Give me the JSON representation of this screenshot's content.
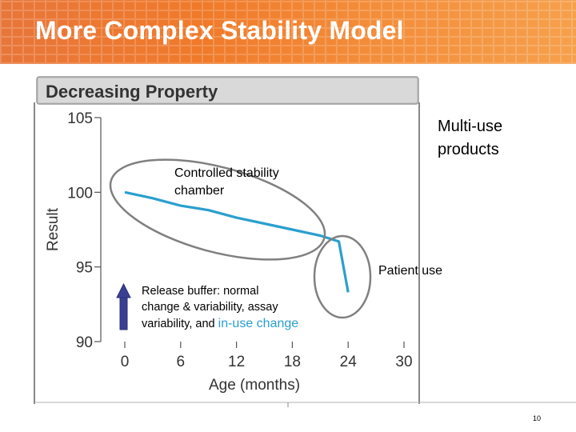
{
  "slide": {
    "title": "More Complex Stability Model",
    "page_number": "10"
  },
  "annotations": {
    "multi_use_line1": "Multi-use",
    "multi_use_line2": "products",
    "controlled_line1": "Controlled stability",
    "controlled_line2": "chamber",
    "patient_use": "Patient use",
    "release_line1": "Release buffer: normal",
    "release_line2": "change & variability, assay",
    "release_line3_prefix": "variability, and ",
    "release_line3_highlight": "in-use change"
  },
  "colors": {
    "banner": "#f07a2a",
    "line": "#2a9fce",
    "arrow": "#3a3f94",
    "highlight_text": "#2a9fce",
    "ellipse": "#808080"
  },
  "chart_data": {
    "type": "line",
    "title": "Decreasing Property",
    "xlabel": "Age (months)",
    "ylabel": "Result",
    "xlim": [
      0,
      30
    ],
    "ylim": [
      90,
      105
    ],
    "xticks": [
      0,
      6,
      12,
      18,
      24,
      30
    ],
    "yticks": [
      90,
      95,
      100,
      105
    ],
    "grid": false,
    "series": [
      {
        "x": [
          0,
          3,
          6,
          9,
          12,
          15,
          18,
          21,
          23,
          24
        ],
        "y": [
          100,
          99.6,
          99.1,
          98.8,
          98.3,
          97.9,
          97.5,
          97.1,
          96.7,
          93.3
        ]
      }
    ]
  }
}
